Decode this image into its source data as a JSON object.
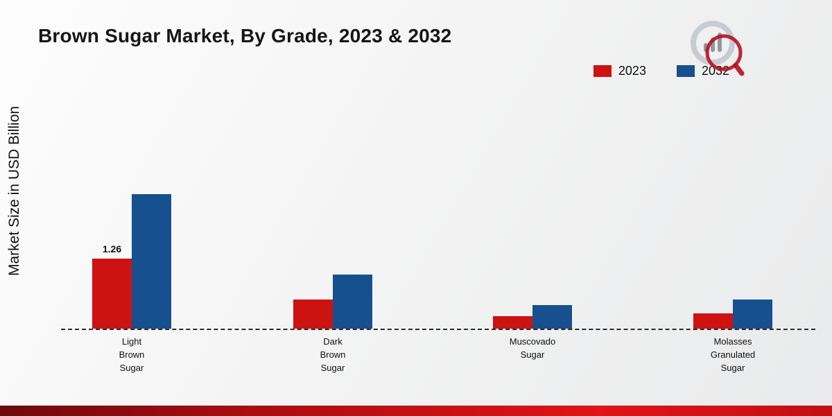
{
  "title": "Brown Sugar Market, By Grade, 2023 & 2032",
  "y_axis_label": "Market Size in USD Billion",
  "legend": {
    "items": [
      {
        "label": "2023",
        "color": "#cd1212"
      },
      {
        "label": "2032",
        "color": "#17508e"
      }
    ]
  },
  "chart_data": {
    "type": "bar",
    "title": "Brown Sugar Market, By Grade, 2023 & 2032",
    "xlabel": "",
    "ylabel": "Market Size in USD Billion",
    "categories": [
      [
        "Light",
        "Brown",
        "Sugar"
      ],
      [
        "Dark",
        "Brown",
        "Sugar"
      ],
      [
        "Muscovado",
        "Sugar"
      ],
      [
        "Molasses",
        "Granulated",
        "Sugar"
      ]
    ],
    "series": [
      {
        "name": "2023",
        "color": "#cd1212",
        "values": [
          1.26,
          0.52,
          0.22,
          0.28
        ],
        "data_labels": [
          "1.26",
          "",
          "",
          ""
        ]
      },
      {
        "name": "2032",
        "color": "#17508e",
        "values": [
          2.42,
          0.97,
          0.42,
          0.53
        ],
        "data_labels": [
          "",
          "",
          "",
          ""
        ]
      }
    ],
    "ylim": [
      0,
      3.75
    ],
    "grid": false,
    "legend_position": "top-right",
    "baseline_style": "dashed"
  }
}
